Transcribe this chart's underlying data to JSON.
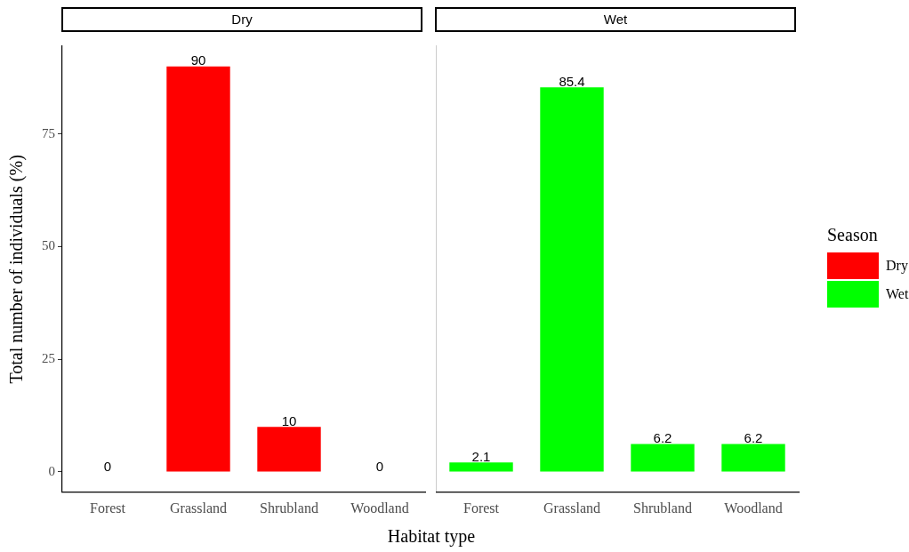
{
  "chart_data": [
    {
      "type": "bar",
      "title": "Dry",
      "categories": [
        "Forest",
        "Grassland",
        "Shrubland",
        "Woodland"
      ],
      "series": [
        {
          "name": "Dry",
          "color": "#ff0000",
          "values": [
            0,
            90,
            10,
            0
          ]
        }
      ],
      "ylim": [
        -4.5,
        94.5
      ],
      "yticks": [
        0,
        25,
        50,
        75
      ],
      "ylabel": "Total number of individuals (%)",
      "xlabel": "Habitat type",
      "data_labels": true,
      "grid": false
    },
    {
      "type": "bar",
      "title": "Wet",
      "categories": [
        "Forest",
        "Grassland",
        "Shrubland",
        "Woodland"
      ],
      "series": [
        {
          "name": "Wet",
          "color": "#00ff00",
          "values": [
            2.1,
            85.4,
            6.2,
            6.2
          ]
        }
      ],
      "ylim": [
        -4.5,
        94.5
      ],
      "yticks": [
        0,
        25,
        50,
        75
      ],
      "tick_labels": "x",
      "data_labels": true,
      "grid": false,
      "legend": "right",
      "legend_title": "Season"
    }
  ]
}
